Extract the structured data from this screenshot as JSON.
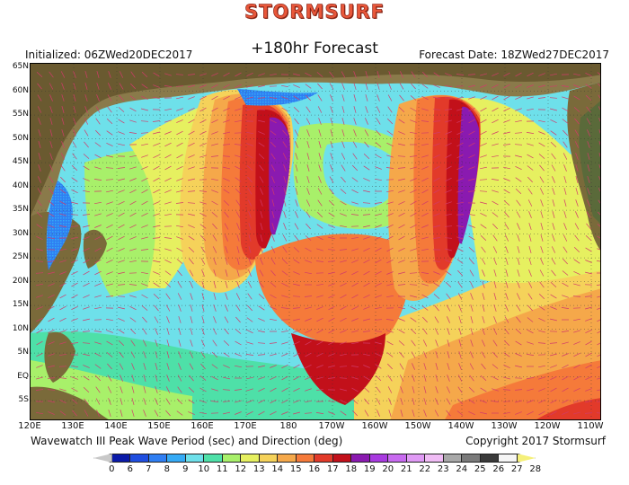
{
  "header": {
    "brand": "STORMSURF",
    "forecast_label": "+180hr Forecast",
    "initialized": "Initialized: 06ZWed20DEC2017",
    "forecast_date": "Forecast Date: 18ZWed27DEC2017"
  },
  "footer": {
    "variable": "Wavewatch III Peak Wave Period (sec) and Direction (deg)",
    "copyright": "Copyright 2017 Stormsurf"
  },
  "map": {
    "lat_labels": [
      "65N",
      "60N",
      "55N",
      "50N",
      "45N",
      "40N",
      "35N",
      "30N",
      "25N",
      "20N",
      "15N",
      "10N",
      "5N",
      "EQ",
      "5S"
    ],
    "lon_labels": [
      "120E",
      "130E",
      "140E",
      "150E",
      "160E",
      "170E",
      "180",
      "170W",
      "160W",
      "150W",
      "140W",
      "130W",
      "120W",
      "110W"
    ]
  },
  "legend": {
    "labels": [
      "0",
      "6",
      "7",
      "8",
      "9",
      "10",
      "11",
      "12",
      "13",
      "14",
      "15",
      "16",
      "17",
      "18",
      "19",
      "20",
      "21",
      "22",
      "23",
      "24",
      "25",
      "26",
      "27",
      "28"
    ],
    "colors": [
      "#c8c8c8",
      "#0a1aa8",
      "#1f4ee0",
      "#2f7ef2",
      "#35aaf5",
      "#6ee0ea",
      "#4ee0a8",
      "#a8f06a",
      "#e6f060",
      "#f5d25a",
      "#f5a84a",
      "#f57a3a",
      "#e23a2a",
      "#c2101a",
      "#8a1ab0",
      "#a83ae0",
      "#c86af0",
      "#e09af5",
      "#f0bcf5",
      "#a8a8a8",
      "#7a7a7a",
      "#3a3a3a",
      "#f5f5f5",
      "#f5f07a"
    ]
  }
}
